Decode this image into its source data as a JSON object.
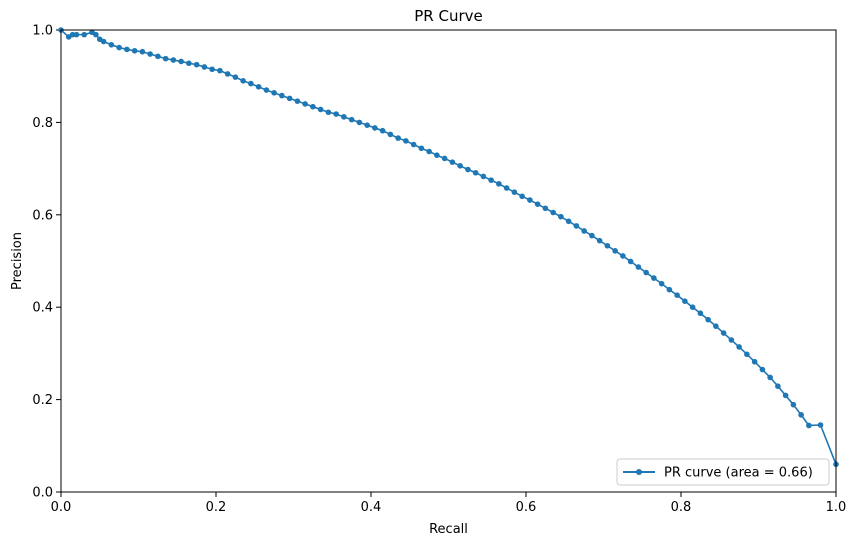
{
  "chart_data": {
    "type": "line",
    "title": "PR Curve",
    "xlabel": "Recall",
    "ylabel": "Precision",
    "xlim": [
      0,
      1
    ],
    "ylim": [
      0,
      1
    ],
    "xticks": [
      "0.0",
      "0.2",
      "0.4",
      "0.6",
      "0.8",
      "1.0"
    ],
    "yticks": [
      "0.0",
      "0.2",
      "0.4",
      "0.6",
      "0.8",
      "1.0"
    ],
    "grid": false,
    "legend_position": "lower-right",
    "series": [
      {
        "name": "PR curve (area = 0.66)",
        "color": "#1f77b4",
        "marker": "dot",
        "points": [
          [
            0.0,
            1.0
          ],
          [
            0.01,
            0.985
          ],
          [
            0.015,
            0.99
          ],
          [
            0.02,
            0.99
          ],
          [
            0.03,
            0.99
          ],
          [
            0.04,
            0.995
          ],
          [
            0.045,
            0.99
          ],
          [
            0.05,
            0.98
          ],
          [
            0.055,
            0.975
          ],
          [
            0.065,
            0.968
          ],
          [
            0.075,
            0.962
          ],
          [
            0.085,
            0.958
          ],
          [
            0.095,
            0.955
          ],
          [
            0.105,
            0.953
          ],
          [
            0.115,
            0.948
          ],
          [
            0.125,
            0.943
          ],
          [
            0.135,
            0.938
          ],
          [
            0.145,
            0.935
          ],
          [
            0.155,
            0.932
          ],
          [
            0.165,
            0.928
          ],
          [
            0.175,
            0.925
          ],
          [
            0.185,
            0.92
          ],
          [
            0.195,
            0.915
          ],
          [
            0.205,
            0.912
          ],
          [
            0.215,
            0.905
          ],
          [
            0.225,
            0.898
          ],
          [
            0.235,
            0.89
          ],
          [
            0.245,
            0.884
          ],
          [
            0.255,
            0.877
          ],
          [
            0.265,
            0.87
          ],
          [
            0.275,
            0.864
          ],
          [
            0.285,
            0.858
          ],
          [
            0.295,
            0.852
          ],
          [
            0.305,
            0.846
          ],
          [
            0.315,
            0.84
          ],
          [
            0.325,
            0.834
          ],
          [
            0.335,
            0.828
          ],
          [
            0.345,
            0.822
          ],
          [
            0.355,
            0.818
          ],
          [
            0.365,
            0.812
          ],
          [
            0.375,
            0.806
          ],
          [
            0.385,
            0.8
          ],
          [
            0.395,
            0.794
          ],
          [
            0.405,
            0.788
          ],
          [
            0.415,
            0.782
          ],
          [
            0.425,
            0.774
          ],
          [
            0.435,
            0.766
          ],
          [
            0.445,
            0.76
          ],
          [
            0.455,
            0.752
          ],
          [
            0.465,
            0.744
          ],
          [
            0.475,
            0.737
          ],
          [
            0.485,
            0.729
          ],
          [
            0.495,
            0.722
          ],
          [
            0.505,
            0.714
          ],
          [
            0.515,
            0.706
          ],
          [
            0.525,
            0.698
          ],
          [
            0.535,
            0.691
          ],
          [
            0.545,
            0.683
          ],
          [
            0.555,
            0.675
          ],
          [
            0.565,
            0.667
          ],
          [
            0.575,
            0.658
          ],
          [
            0.585,
            0.649
          ],
          [
            0.595,
            0.64
          ],
          [
            0.605,
            0.632
          ],
          [
            0.615,
            0.623
          ],
          [
            0.625,
            0.614
          ],
          [
            0.635,
            0.605
          ],
          [
            0.645,
            0.596
          ],
          [
            0.655,
            0.586
          ],
          [
            0.665,
            0.576
          ],
          [
            0.675,
            0.565
          ],
          [
            0.685,
            0.555
          ],
          [
            0.695,
            0.544
          ],
          [
            0.705,
            0.533
          ],
          [
            0.715,
            0.522
          ],
          [
            0.725,
            0.511
          ],
          [
            0.735,
            0.499
          ],
          [
            0.745,
            0.487
          ],
          [
            0.755,
            0.475
          ],
          [
            0.765,
            0.463
          ],
          [
            0.775,
            0.451
          ],
          [
            0.785,
            0.438
          ],
          [
            0.795,
            0.426
          ],
          [
            0.805,
            0.413
          ],
          [
            0.815,
            0.4
          ],
          [
            0.825,
            0.387
          ],
          [
            0.835,
            0.373
          ],
          [
            0.845,
            0.359
          ],
          [
            0.855,
            0.344
          ],
          [
            0.865,
            0.329
          ],
          [
            0.875,
            0.314
          ],
          [
            0.885,
            0.298
          ],
          [
            0.895,
            0.282
          ],
          [
            0.905,
            0.265
          ],
          [
            0.915,
            0.248
          ],
          [
            0.925,
            0.229
          ],
          [
            0.935,
            0.209
          ],
          [
            0.945,
            0.189
          ],
          [
            0.955,
            0.167
          ],
          [
            0.965,
            0.144
          ],
          [
            0.98,
            0.145
          ],
          [
            1.0,
            0.06
          ]
        ]
      }
    ]
  }
}
